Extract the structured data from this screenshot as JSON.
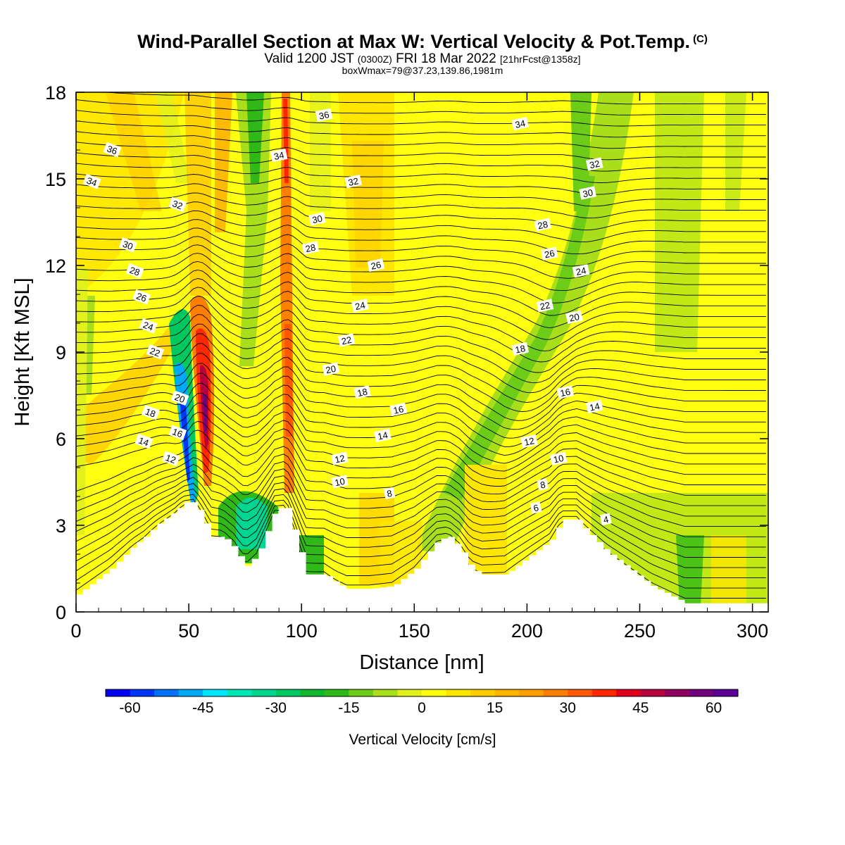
{
  "title": {
    "main": "Wind-Parallel Section at Max W: Vertical Velocity & Pot.Temp.",
    "copyright": "(C)",
    "valid_prefix": "Valid 1200 JST",
    "valid_zulu": "(0300Z)",
    "valid_date": "FRI 18 Mar 2022",
    "forecast": "[21hrFcst@1358z]",
    "box": "boxWmax=79@37.23,139.86,1981m"
  },
  "chart_data": {
    "type": "heatmap",
    "xlabel": "Distance [nm]",
    "ylabel": "Height [Kft MSL]",
    "xlim": [
      0,
      307
    ],
    "ylim": [
      0,
      18
    ],
    "xticks": [
      0,
      50,
      100,
      150,
      200,
      250,
      300
    ],
    "yticks": [
      0,
      3,
      6,
      9,
      12,
      15,
      18
    ],
    "colorbar": {
      "label": "Vertical Velocity [cm/s]",
      "range": [
        -65,
        65
      ],
      "step": 5,
      "tick_values": [
        -60,
        -45,
        -30,
        -15,
        0,
        15,
        30,
        45,
        60
      ],
      "colors": [
        "#0000f5",
        "#0036f5",
        "#0070f7",
        "#00a8fa",
        "#00e6ff",
        "#00e6b4",
        "#00d690",
        "#00c860",
        "#10b830",
        "#30b818",
        "#6ccc18",
        "#a8de1a",
        "#e2f01c",
        "#ffff10",
        "#ffe600",
        "#ffcc00",
        "#ffb400",
        "#ff9e00",
        "#ff8000",
        "#ff5800",
        "#ff2800",
        "#e0001a",
        "#b8003c",
        "#900060",
        "#70007e",
        "#5a0096"
      ]
    },
    "terrain_kft": [
      [
        0,
        0.6
      ],
      [
        5,
        0.9
      ],
      [
        10,
        1.2
      ],
      [
        15,
        1.5
      ],
      [
        20,
        1.9
      ],
      [
        25,
        2.3
      ],
      [
        30,
        2.6
      ],
      [
        35,
        3.0
      ],
      [
        40,
        3.3
      ],
      [
        45,
        3.6
      ],
      [
        47,
        3.8
      ],
      [
        52,
        3.8
      ],
      [
        55,
        3.4
      ],
      [
        58,
        2.9
      ],
      [
        60,
        2.6
      ],
      [
        65,
        2.6
      ],
      [
        70,
        2.2
      ],
      [
        73,
        1.8
      ],
      [
        75,
        1.6
      ],
      [
        80,
        2.0
      ],
      [
        85,
        3.0
      ],
      [
        88,
        3.6
      ],
      [
        93,
        3.6
      ],
      [
        97,
        2.6
      ],
      [
        100,
        1.8
      ],
      [
        102,
        1.3
      ],
      [
        110,
        1.3
      ],
      [
        115,
        1.0
      ],
      [
        120,
        0.8
      ],
      [
        130,
        0.8
      ],
      [
        140,
        0.9
      ],
      [
        145,
        1.2
      ],
      [
        150,
        1.5
      ],
      [
        155,
        2.0
      ],
      [
        160,
        2.5
      ],
      [
        165,
        2.6
      ],
      [
        170,
        2.2
      ],
      [
        175,
        1.5
      ],
      [
        180,
        1.3
      ],
      [
        190,
        1.3
      ],
      [
        195,
        1.6
      ],
      [
        200,
        1.9
      ],
      [
        205,
        2.2
      ],
      [
        210,
        2.5
      ],
      [
        215,
        3.2
      ],
      [
        222,
        3.2
      ],
      [
        225,
        2.9
      ],
      [
        230,
        2.5
      ],
      [
        235,
        2.1
      ],
      [
        240,
        1.8
      ],
      [
        245,
        1.5
      ],
      [
        250,
        1.2
      ],
      [
        255,
        0.9
      ],
      [
        260,
        0.7
      ],
      [
        265,
        0.5
      ],
      [
        270,
        0.3
      ],
      [
        280,
        0.3
      ],
      [
        290,
        0.3
      ],
      [
        300,
        0.3
      ],
      [
        307,
        0.3
      ]
    ],
    "theta_contour_labels": [
      {
        "value": "36",
        "x": 16,
        "y": 16.0
      },
      {
        "value": "34",
        "x": 7,
        "y": 14.9
      },
      {
        "value": "32",
        "x": 45,
        "y": 14.1
      },
      {
        "value": "30",
        "x": 23,
        "y": 12.7
      },
      {
        "value": "28",
        "x": 26,
        "y": 11.8
      },
      {
        "value": "26",
        "x": 29,
        "y": 10.9
      },
      {
        "value": "24",
        "x": 32,
        "y": 9.9
      },
      {
        "value": "22",
        "x": 35,
        "y": 9.0
      },
      {
        "value": "20",
        "x": 46,
        "y": 7.4
      },
      {
        "value": "18",
        "x": 33,
        "y": 6.9
      },
      {
        "value": "16",
        "x": 45,
        "y": 6.2
      },
      {
        "value": "14",
        "x": 30,
        "y": 5.9
      },
      {
        "value": "12",
        "x": 42,
        "y": 5.3
      },
      {
        "value": "36",
        "x": 110,
        "y": 17.2
      },
      {
        "value": "34",
        "x": 90,
        "y": 15.8
      },
      {
        "value": "32",
        "x": 123,
        "y": 14.9
      },
      {
        "value": "30",
        "x": 107,
        "y": 13.6
      },
      {
        "value": "28",
        "x": 104,
        "y": 12.6
      },
      {
        "value": "26",
        "x": 133,
        "y": 12.0
      },
      {
        "value": "24",
        "x": 126,
        "y": 10.6
      },
      {
        "value": "22",
        "x": 120,
        "y": 9.4
      },
      {
        "value": "20",
        "x": 113,
        "y": 8.4
      },
      {
        "value": "18",
        "x": 127,
        "y": 7.6
      },
      {
        "value": "16",
        "x": 143,
        "y": 7.0
      },
      {
        "value": "14",
        "x": 136,
        "y": 6.1
      },
      {
        "value": "12",
        "x": 117,
        "y": 5.3
      },
      {
        "value": "10",
        "x": 117,
        "y": 4.5
      },
      {
        "value": "8",
        "x": 139,
        "y": 4.1
      },
      {
        "value": "34",
        "x": 197,
        "y": 16.9
      },
      {
        "value": "32",
        "x": 230,
        "y": 15.5
      },
      {
        "value": "30",
        "x": 227,
        "y": 14.5
      },
      {
        "value": "28",
        "x": 207,
        "y": 13.4
      },
      {
        "value": "26",
        "x": 210,
        "y": 12.4
      },
      {
        "value": "24",
        "x": 224,
        "y": 11.8
      },
      {
        "value": "22",
        "x": 208,
        "y": 10.6
      },
      {
        "value": "20",
        "x": 221,
        "y": 10.2
      },
      {
        "value": "18",
        "x": 197,
        "y": 9.1
      },
      {
        "value": "16",
        "x": 217,
        "y": 7.6
      },
      {
        "value": "14",
        "x": 230,
        "y": 7.1
      },
      {
        "value": "12",
        "x": 201,
        "y": 5.9
      },
      {
        "value": "10",
        "x": 214,
        "y": 5.3
      },
      {
        "value": "8",
        "x": 207,
        "y": 4.4
      },
      {
        "value": "6",
        "x": 204,
        "y": 3.6
      },
      {
        "value": "4",
        "x": 235,
        "y": 3.2
      }
    ]
  }
}
